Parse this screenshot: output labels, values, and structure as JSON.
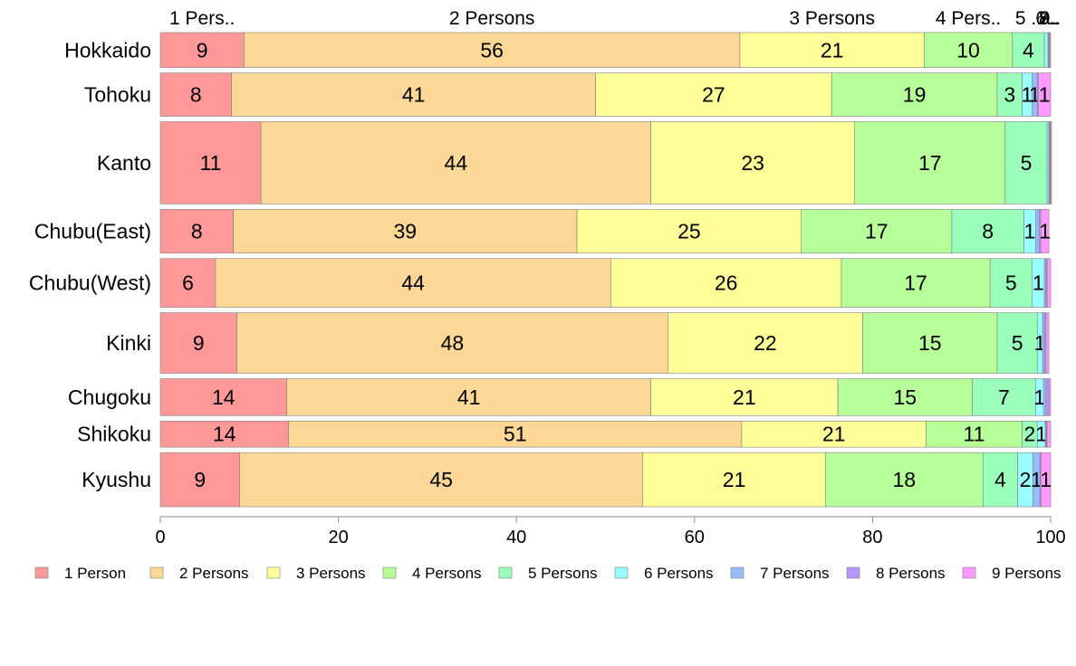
{
  "chart_data": {
    "type": "bar",
    "orientation": "horizontal",
    "stacked": true,
    "normalized": true,
    "categories": [
      "Hokkaido",
      "Tohoku",
      "Kanto",
      "Chubu(East)",
      "Chubu(West)",
      "Kinki",
      "Chugoku",
      "Shikoku",
      "Kyushu"
    ],
    "bar_weights": [
      0.71,
      0.88,
      1.67,
      0.89,
      0.99,
      1.23,
      0.75,
      0.53,
      1.1
    ],
    "series": [
      {
        "name": "1 Person",
        "color": "#ff9999",
        "values": [
          9.4,
          8.0,
          11.3,
          8.2,
          6.2,
          8.6,
          14.2,
          14.4,
          8.9
        ]
      },
      {
        "name": "2 Persons",
        "color": "#fdd796",
        "values": [
          55.7,
          40.9,
          43.8,
          38.6,
          44.4,
          48.4,
          40.9,
          50.9,
          45.3
        ]
      },
      {
        "name": "3 Persons",
        "color": "#ffff99",
        "values": [
          20.7,
          26.5,
          22.9,
          25.2,
          25.9,
          21.9,
          21.0,
          20.7,
          20.5
        ]
      },
      {
        "name": "4 Persons",
        "color": "#b6ff99",
        "values": [
          9.9,
          18.6,
          16.9,
          16.9,
          16.7,
          15.1,
          15.1,
          10.8,
          17.7
        ]
      },
      {
        "name": "5 Persons",
        "color": "#99ffbb",
        "values": [
          3.6,
          2.8,
          4.7,
          8.1,
          4.7,
          4.5,
          7.1,
          1.7,
          3.9
        ]
      },
      {
        "name": "6 Persons",
        "color": "#99ffff",
        "values": [
          0.4,
          1.1,
          0.2,
          1.3,
          1.4,
          0.6,
          0.9,
          0.9,
          1.7
        ]
      },
      {
        "name": "7 Persons",
        "color": "#99bbff",
        "values": [
          0.1,
          0.6,
          0.1,
          0.4,
          0.2,
          0.2,
          0.3,
          0.1,
          0.8
        ]
      },
      {
        "name": "8 Persons",
        "color": "#b699ff",
        "values": [
          0.1,
          0.1,
          0.1,
          0.2,
          0.1,
          0.2,
          0.3,
          0.1,
          0.1
        ]
      },
      {
        "name": "9 Persons",
        "color": "#ff99ff",
        "values": [
          0.1,
          1.4,
          0.1,
          0.9,
          0.4,
          0.3,
          0.2,
          0.4,
          1.1
        ]
      }
    ],
    "top_labels": [
      "1 Pers..",
      "2 Persons",
      "3 Persons",
      "4 Pers..",
      "5 ..",
      "6..",
      "7..",
      "8..",
      "9.."
    ],
    "xlim": [
      0,
      100
    ],
    "xticks": [
      0,
      20,
      40,
      60,
      80,
      100
    ],
    "legend_position": "bottom",
    "grid": false,
    "title": "",
    "xlabel": "",
    "ylabel": ""
  }
}
